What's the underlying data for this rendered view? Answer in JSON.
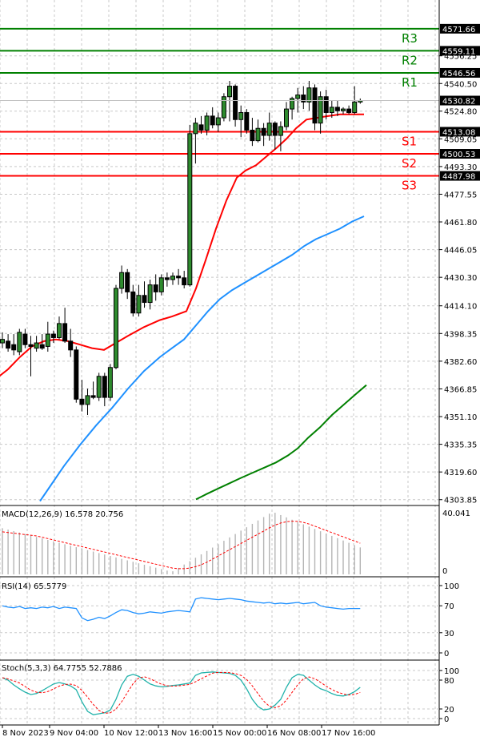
{
  "chart_data": {
    "type": "candlestick",
    "main": {
      "axis_ticks": [
        "4556.25",
        "4540.50",
        "4524.80",
        "4509.05",
        "4493.30",
        "4477.55",
        "4461.80",
        "4446.05",
        "4430.30",
        "4414.10",
        "4398.35",
        "4382.60",
        "4366.85",
        "4351.10",
        "4335.35",
        "4319.60",
        "4303.85"
      ],
      "ylim": [
        4301,
        4588
      ],
      "levels": [
        {
          "label": "R3",
          "value": 4571.66,
          "value_text": "4571.66",
          "color": "#008000"
        },
        {
          "label": "R2",
          "value": 4559.11,
          "value_text": "4559.11",
          "color": "#008000"
        },
        {
          "label": "R1",
          "value": 4546.56,
          "value_text": "4546.56",
          "color": "#008000"
        },
        {
          "label": "S1",
          "value": 4513.08,
          "value_text": "4513.08",
          "color": "#ff0000"
        },
        {
          "label": "S2",
          "value": 4500.53,
          "value_text": "4500.53",
          "color": "#ff0000"
        },
        {
          "label": "S3",
          "value": 4487.98,
          "value_text": "4487.98",
          "color": "#ff0000"
        }
      ],
      "current_price": {
        "value": 4530.82,
        "text": "4530.82"
      },
      "candles": [
        {
          "o": 4393,
          "h": 4399,
          "l": 4390,
          "c": 4395
        },
        {
          "o": 4394,
          "h": 4398,
          "l": 4388,
          "c": 4390
        },
        {
          "o": 4392,
          "h": 4398,
          "l": 4386,
          "c": 4389
        },
        {
          "o": 4388,
          "h": 4401,
          "l": 4386,
          "c": 4399
        },
        {
          "o": 4398,
          "h": 4401,
          "l": 4390,
          "c": 4392
        },
        {
          "o": 4392,
          "h": 4397,
          "l": 4374,
          "c": 4391
        },
        {
          "o": 4390,
          "h": 4397,
          "l": 4388,
          "c": 4393
        },
        {
          "o": 4392,
          "h": 4398,
          "l": 4389,
          "c": 4390
        },
        {
          "o": 4391,
          "h": 4405,
          "l": 4388,
          "c": 4398
        },
        {
          "o": 4398,
          "h": 4400,
          "l": 4393,
          "c": 4396
        },
        {
          "o": 4396,
          "h": 4408,
          "l": 4395,
          "c": 4404
        },
        {
          "o": 4404,
          "h": 4413,
          "l": 4393,
          "c": 4394
        },
        {
          "o": 4394,
          "h": 4401,
          "l": 4385,
          "c": 4389
        },
        {
          "o": 4389,
          "h": 4391,
          "l": 4359,
          "c": 4361
        },
        {
          "o": 4361,
          "h": 4372,
          "l": 4354,
          "c": 4358
        },
        {
          "o": 4358,
          "h": 4367,
          "l": 4352,
          "c": 4363
        },
        {
          "o": 4363,
          "h": 4371,
          "l": 4361,
          "c": 4362
        },
        {
          "o": 4362,
          "h": 4376,
          "l": 4360,
          "c": 4374
        },
        {
          "o": 4374,
          "h": 4376,
          "l": 4357,
          "c": 4362
        },
        {
          "o": 4362,
          "h": 4381,
          "l": 4360,
          "c": 4379
        },
        {
          "o": 4379,
          "h": 4426,
          "l": 4378,
          "c": 4424
        },
        {
          "o": 4424,
          "h": 4437,
          "l": 4421,
          "c": 4433
        },
        {
          "o": 4433,
          "h": 4435,
          "l": 4418,
          "c": 4422
        },
        {
          "o": 4422,
          "h": 4426,
          "l": 4408,
          "c": 4410
        },
        {
          "o": 4410,
          "h": 4426,
          "l": 4408,
          "c": 4420
        },
        {
          "o": 4420,
          "h": 4428,
          "l": 4413,
          "c": 4416
        },
        {
          "o": 4416,
          "h": 4429,
          "l": 4412,
          "c": 4426
        },
        {
          "o": 4426,
          "h": 4432,
          "l": 4417,
          "c": 4422
        },
        {
          "o": 4422,
          "h": 4432,
          "l": 4420,
          "c": 4430
        },
        {
          "o": 4430,
          "h": 4433,
          "l": 4425,
          "c": 4429
        },
        {
          "o": 4429,
          "h": 4433,
          "l": 4426,
          "c": 4431
        },
        {
          "o": 4431,
          "h": 4435,
          "l": 4426,
          "c": 4430
        },
        {
          "o": 4430,
          "h": 4434,
          "l": 4424,
          "c": 4426
        },
        {
          "o": 4426,
          "h": 4517,
          "l": 4425,
          "c": 4512
        },
        {
          "o": 4512,
          "h": 4521,
          "l": 4495,
          "c": 4518
        },
        {
          "o": 4517,
          "h": 4522,
          "l": 4512,
          "c": 4514
        },
        {
          "o": 4514,
          "h": 4524,
          "l": 4511,
          "c": 4522
        },
        {
          "o": 4522,
          "h": 4527,
          "l": 4515,
          "c": 4517
        },
        {
          "o": 4517,
          "h": 4524,
          "l": 4513,
          "c": 4521
        },
        {
          "o": 4521,
          "h": 4535,
          "l": 4519,
          "c": 4533
        },
        {
          "o": 4533,
          "h": 4542,
          "l": 4519,
          "c": 4539
        },
        {
          "o": 4539,
          "h": 4540,
          "l": 4516,
          "c": 4520
        },
        {
          "o": 4520,
          "h": 4528,
          "l": 4510,
          "c": 4524
        },
        {
          "o": 4524,
          "h": 4526,
          "l": 4512,
          "c": 4514
        },
        {
          "o": 4514,
          "h": 4521,
          "l": 4505,
          "c": 4508
        },
        {
          "o": 4508,
          "h": 4520,
          "l": 4507,
          "c": 4515
        },
        {
          "o": 4515,
          "h": 4518,
          "l": 4505,
          "c": 4511
        },
        {
          "o": 4511,
          "h": 4524,
          "l": 4508,
          "c": 4518
        },
        {
          "o": 4518,
          "h": 4519,
          "l": 4503,
          "c": 4511
        },
        {
          "o": 4511,
          "h": 4519,
          "l": 4502,
          "c": 4516
        },
        {
          "o": 4516,
          "h": 4530,
          "l": 4514,
          "c": 4526
        },
        {
          "o": 4526,
          "h": 4533,
          "l": 4520,
          "c": 4532
        },
        {
          "o": 4532,
          "h": 4538,
          "l": 4524,
          "c": 4534
        },
        {
          "o": 4534,
          "h": 4539,
          "l": 4526,
          "c": 4530
        },
        {
          "o": 4530,
          "h": 4542,
          "l": 4525,
          "c": 4538
        },
        {
          "o": 4538,
          "h": 4540,
          "l": 4514,
          "c": 4518
        },
        {
          "o": 4518,
          "h": 4536,
          "l": 4512,
          "c": 4533
        },
        {
          "o": 4533,
          "h": 4537,
          "l": 4520,
          "c": 4524
        },
        {
          "o": 4524,
          "h": 4531,
          "l": 4521,
          "c": 4527
        },
        {
          "o": 4527,
          "h": 4531,
          "l": 4522,
          "c": 4525
        },
        {
          "o": 4525,
          "h": 4527,
          "l": 4523,
          "c": 4526
        },
        {
          "o": 4526,
          "h": 4528,
          "l": 4523,
          "c": 4524
        },
        {
          "o": 4524,
          "h": 4539,
          "l": 4523,
          "c": 4530
        },
        {
          "o": 4530,
          "h": 4532,
          "l": 4529,
          "c": 4530.82
        }
      ],
      "ma_red": [
        [
          -4,
          4373
        ],
        [
          10,
          4378
        ],
        [
          25,
          4385
        ],
        [
          40,
          4391
        ],
        [
          55,
          4394
        ],
        [
          70,
          4395
        ],
        [
          85,
          4394
        ],
        [
          100,
          4392
        ],
        [
          115,
          4390
        ],
        [
          130,
          4389
        ],
        [
          145,
          4393
        ],
        [
          160,
          4397
        ],
        [
          180,
          4402
        ],
        [
          200,
          4406
        ],
        [
          215,
          4408
        ],
        [
          233,
          4411
        ],
        [
          245,
          4424
        ],
        [
          257,
          4440
        ],
        [
          270,
          4458
        ],
        [
          283,
          4474
        ],
        [
          296,
          4487
        ],
        [
          307,
          4491
        ],
        [
          320,
          4494
        ],
        [
          333,
          4499
        ],
        [
          346,
          4504
        ],
        [
          358,
          4509
        ],
        [
          370,
          4515
        ],
        [
          383,
          4520
        ],
        [
          396,
          4521
        ],
        [
          410,
          4522
        ],
        [
          425,
          4523
        ],
        [
          440,
          4523
        ],
        [
          455,
          4523
        ]
      ],
      "ma_blue": [
        [
          50,
          4303
        ],
        [
          62,
          4311
        ],
        [
          80,
          4323
        ],
        [
          100,
          4335
        ],
        [
          120,
          4346
        ],
        [
          140,
          4356
        ],
        [
          160,
          4367
        ],
        [
          180,
          4377
        ],
        [
          200,
          4385
        ],
        [
          215,
          4390
        ],
        [
          230,
          4395
        ],
        [
          245,
          4403
        ],
        [
          260,
          4411
        ],
        [
          275,
          4418
        ],
        [
          290,
          4423
        ],
        [
          305,
          4427
        ],
        [
          320,
          4431
        ],
        [
          335,
          4435
        ],
        [
          350,
          4439
        ],
        [
          365,
          4443
        ],
        [
          380,
          4448
        ],
        [
          395,
          4452
        ],
        [
          410,
          4455
        ],
        [
          425,
          4458
        ],
        [
          440,
          4462
        ],
        [
          455,
          4465
        ]
      ],
      "ma_green": [
        [
          245,
          4304
        ],
        [
          258,
          4307
        ],
        [
          272,
          4310
        ],
        [
          286,
          4313
        ],
        [
          300,
          4316
        ],
        [
          315,
          4319
        ],
        [
          330,
          4322
        ],
        [
          345,
          4325
        ],
        [
          360,
          4329
        ],
        [
          372,
          4333
        ],
        [
          385,
          4339
        ],
        [
          400,
          4345
        ],
        [
          415,
          4352
        ],
        [
          430,
          4358
        ],
        [
          445,
          4364
        ],
        [
          458,
          4369
        ]
      ]
    },
    "macd": {
      "label": "MACD(12,26,9) 16.578 20.756",
      "tick_top": "40.041",
      "tick_bottom": "0"
    },
    "rsi": {
      "label": "RSI(14) 65.5779",
      "ticks": [
        "100",
        "70",
        "30",
        "0"
      ],
      "tick_values": [
        100,
        70,
        30,
        0
      ]
    },
    "stoch": {
      "label": "Stoch(5,3,3) 64.7755 52.7886",
      "ticks": [
        "100",
        "80",
        "20",
        "0"
      ],
      "tick_values": [
        100,
        80,
        20,
        0
      ]
    },
    "x_ticks": [
      "8 Nov 2023",
      "9 Nov 04:00",
      "10 Nov 12:00",
      "13 Nov 16:00",
      "15 Nov 00:00",
      "16 Nov 08:00",
      "17 Nov 16:00"
    ]
  }
}
